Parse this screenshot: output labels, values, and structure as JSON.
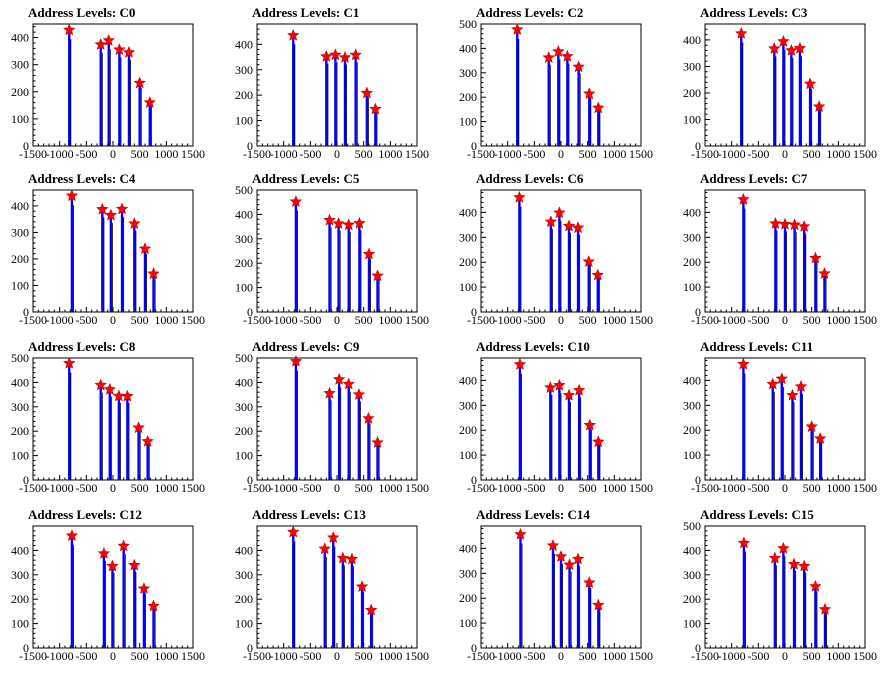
{
  "figure": {
    "x_ticks": [
      -1500,
      -1000,
      -500,
      0,
      500,
      1000,
      1500
    ],
    "xlim": [
      -1500,
      1500
    ],
    "bar_color": "#0000ff",
    "marker_color": "#ff0000",
    "chart_type": "bar"
  },
  "chart_data": [
    {
      "title": "Address Levels: C0",
      "type": "bar",
      "ylim": [
        0,
        450
      ],
      "y_ticks": [
        0,
        100,
        200,
        300,
        400
      ],
      "peaks": [
        {
          "x": -820,
          "y": 428
        },
        {
          "x": -230,
          "y": 374
        },
        {
          "x": -80,
          "y": 389
        },
        {
          "x": 120,
          "y": 355
        },
        {
          "x": 300,
          "y": 345
        },
        {
          "x": 500,
          "y": 232
        },
        {
          "x": 690,
          "y": 160
        }
      ]
    },
    {
      "title": "Address Levels: C1",
      "type": "bar",
      "ylim": [
        0,
        480
      ],
      "y_ticks": [
        0,
        100,
        200,
        300,
        400
      ],
      "peaks": [
        {
          "x": -820,
          "y": 435
        },
        {
          "x": -200,
          "y": 352
        },
        {
          "x": -30,
          "y": 358
        },
        {
          "x": 150,
          "y": 348
        },
        {
          "x": 350,
          "y": 358
        },
        {
          "x": 560,
          "y": 208
        },
        {
          "x": 720,
          "y": 145
        }
      ]
    },
    {
      "title": "Address Levels: C2",
      "type": "bar",
      "ylim": [
        0,
        500
      ],
      "y_ticks": [
        0,
        100,
        200,
        300,
        400,
        500
      ],
      "peaks": [
        {
          "x": -820,
          "y": 477
        },
        {
          "x": -230,
          "y": 362
        },
        {
          "x": -50,
          "y": 387
        },
        {
          "x": 120,
          "y": 367
        },
        {
          "x": 330,
          "y": 324
        },
        {
          "x": 530,
          "y": 214
        },
        {
          "x": 700,
          "y": 156
        }
      ]
    },
    {
      "title": "Address Levels: C3",
      "type": "bar",
      "ylim": [
        0,
        460
      ],
      "y_ticks": [
        0,
        100,
        200,
        300,
        400
      ],
      "peaks": [
        {
          "x": -820,
          "y": 424
        },
        {
          "x": -200,
          "y": 367
        },
        {
          "x": -30,
          "y": 394
        },
        {
          "x": 120,
          "y": 360
        },
        {
          "x": 280,
          "y": 368
        },
        {
          "x": 470,
          "y": 234
        },
        {
          "x": 640,
          "y": 148
        }
      ]
    },
    {
      "title": "Address Levels: C4",
      "type": "bar",
      "ylim": [
        0,
        460
      ],
      "y_ticks": [
        0,
        100,
        200,
        300,
        400
      ],
      "peaks": [
        {
          "x": -770,
          "y": 438
        },
        {
          "x": -200,
          "y": 387
        },
        {
          "x": -40,
          "y": 365
        },
        {
          "x": 170,
          "y": 388
        },
        {
          "x": 400,
          "y": 333
        },
        {
          "x": 600,
          "y": 238
        },
        {
          "x": 760,
          "y": 144
        }
      ]
    },
    {
      "title": "Address Levels: C5",
      "type": "bar",
      "ylim": [
        0,
        500
      ],
      "y_ticks": [
        0,
        100,
        200,
        300,
        400,
        500
      ],
      "peaks": [
        {
          "x": -770,
          "y": 452
        },
        {
          "x": -140,
          "y": 376
        },
        {
          "x": 30,
          "y": 362
        },
        {
          "x": 220,
          "y": 357
        },
        {
          "x": 420,
          "y": 363
        },
        {
          "x": 600,
          "y": 237
        },
        {
          "x": 760,
          "y": 148
        }
      ]
    },
    {
      "title": "Address Levels: C6",
      "type": "bar",
      "ylim": [
        0,
        490
      ],
      "y_ticks": [
        0,
        100,
        200,
        300,
        400
      ],
      "peaks": [
        {
          "x": -780,
          "y": 460
        },
        {
          "x": -190,
          "y": 362
        },
        {
          "x": -30,
          "y": 398
        },
        {
          "x": 150,
          "y": 345
        },
        {
          "x": 320,
          "y": 338
        },
        {
          "x": 520,
          "y": 202
        },
        {
          "x": 690,
          "y": 148
        }
      ]
    },
    {
      "title": "Address Levels: C7",
      "type": "bar",
      "ylim": [
        0,
        490
      ],
      "y_ticks": [
        0,
        100,
        200,
        300,
        400
      ],
      "peaks": [
        {
          "x": -780,
          "y": 452
        },
        {
          "x": -180,
          "y": 355
        },
        {
          "x": 0,
          "y": 352
        },
        {
          "x": 180,
          "y": 350
        },
        {
          "x": 360,
          "y": 343
        },
        {
          "x": 570,
          "y": 216
        },
        {
          "x": 740,
          "y": 154
        }
      ]
    },
    {
      "title": "Address Levels: C8",
      "type": "bar",
      "ylim": [
        0,
        500
      ],
      "y_ticks": [
        0,
        100,
        200,
        300,
        400,
        500
      ],
      "peaks": [
        {
          "x": -820,
          "y": 478
        },
        {
          "x": -230,
          "y": 389
        },
        {
          "x": -60,
          "y": 371
        },
        {
          "x": 110,
          "y": 344
        },
        {
          "x": 270,
          "y": 343
        },
        {
          "x": 480,
          "y": 214
        },
        {
          "x": 650,
          "y": 158
        }
      ]
    },
    {
      "title": "Address Levels: C9",
      "type": "bar",
      "ylim": [
        0,
        500
      ],
      "y_ticks": [
        0,
        100,
        200,
        300,
        400,
        500
      ],
      "peaks": [
        {
          "x": -770,
          "y": 486
        },
        {
          "x": -140,
          "y": 355
        },
        {
          "x": 40,
          "y": 412
        },
        {
          "x": 220,
          "y": 393
        },
        {
          "x": 410,
          "y": 350
        },
        {
          "x": 590,
          "y": 252
        },
        {
          "x": 760,
          "y": 153
        }
      ]
    },
    {
      "title": "Address Levels: C10",
      "type": "bar",
      "ylim": [
        0,
        490
      ],
      "y_ticks": [
        0,
        100,
        200,
        300,
        400
      ],
      "peaks": [
        {
          "x": -770,
          "y": 464
        },
        {
          "x": -200,
          "y": 371
        },
        {
          "x": -30,
          "y": 380
        },
        {
          "x": 150,
          "y": 340
        },
        {
          "x": 340,
          "y": 360
        },
        {
          "x": 540,
          "y": 220
        },
        {
          "x": 700,
          "y": 153
        }
      ]
    },
    {
      "title": "Address Levels: C11",
      "type": "bar",
      "ylim": [
        0,
        490
      ],
      "y_ticks": [
        0,
        100,
        200,
        300,
        400
      ],
      "peaks": [
        {
          "x": -780,
          "y": 465
        },
        {
          "x": -230,
          "y": 385
        },
        {
          "x": -60,
          "y": 406
        },
        {
          "x": 140,
          "y": 340
        },
        {
          "x": 300,
          "y": 375
        },
        {
          "x": 500,
          "y": 214
        },
        {
          "x": 660,
          "y": 166
        }
      ]
    },
    {
      "title": "Address Levels: C12",
      "type": "bar",
      "ylim": [
        0,
        500
      ],
      "y_ticks": [
        0,
        100,
        200,
        300,
        400
      ],
      "peaks": [
        {
          "x": -770,
          "y": 460
        },
        {
          "x": -170,
          "y": 387
        },
        {
          "x": -10,
          "y": 335
        },
        {
          "x": 200,
          "y": 418
        },
        {
          "x": 400,
          "y": 339
        },
        {
          "x": 580,
          "y": 243
        },
        {
          "x": 760,
          "y": 172
        }
      ]
    },
    {
      "title": "Address Levels: C13",
      "type": "bar",
      "ylim": [
        0,
        500
      ],
      "y_ticks": [
        0,
        100,
        200,
        300,
        400
      ],
      "peaks": [
        {
          "x": -820,
          "y": 475
        },
        {
          "x": -230,
          "y": 406
        },
        {
          "x": -70,
          "y": 452
        },
        {
          "x": 110,
          "y": 368
        },
        {
          "x": 280,
          "y": 364
        },
        {
          "x": 470,
          "y": 251
        },
        {
          "x": 640,
          "y": 155
        }
      ]
    },
    {
      "title": "Address Levels: C14",
      "type": "bar",
      "ylim": [
        0,
        490
      ],
      "y_ticks": [
        0,
        100,
        200,
        300,
        400
      ],
      "peaks": [
        {
          "x": -760,
          "y": 456
        },
        {
          "x": -150,
          "y": 411
        },
        {
          "x": 0,
          "y": 367
        },
        {
          "x": 160,
          "y": 334
        },
        {
          "x": 320,
          "y": 357
        },
        {
          "x": 530,
          "y": 262
        },
        {
          "x": 700,
          "y": 172
        }
      ]
    },
    {
      "title": "Address Levels: C15",
      "type": "bar",
      "ylim": [
        0,
        500
      ],
      "y_ticks": [
        0,
        100,
        200,
        300,
        400,
        500
      ],
      "peaks": [
        {
          "x": -770,
          "y": 430
        },
        {
          "x": -190,
          "y": 368
        },
        {
          "x": -30,
          "y": 408
        },
        {
          "x": 170,
          "y": 343
        },
        {
          "x": 360,
          "y": 335
        },
        {
          "x": 570,
          "y": 252
        },
        {
          "x": 750,
          "y": 158
        }
      ]
    }
  ]
}
